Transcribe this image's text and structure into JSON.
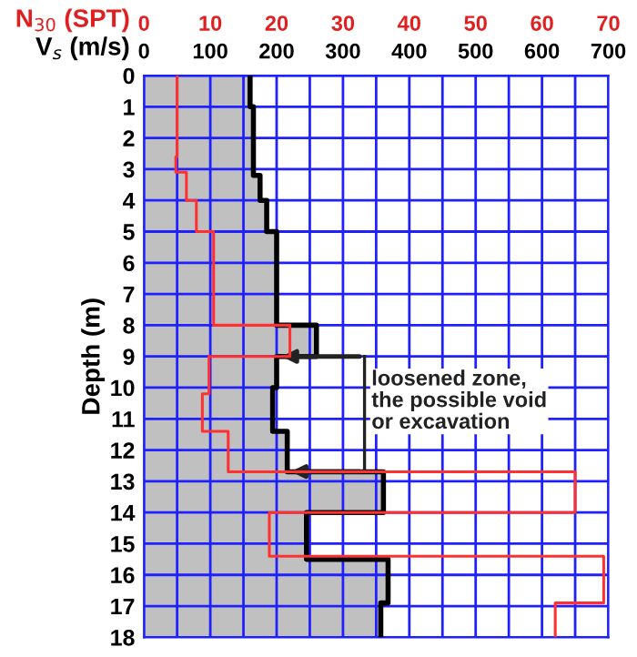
{
  "chart_data": {
    "type": "step",
    "orientation": "horizontal",
    "xlabel": "V$_{s}$ (m/s)",
    "x2label": "N$_{30}$ (SPT)",
    "ylabel": "Depth (m)",
    "xlim": [
      0,
      700
    ],
    "xticks": [
      0,
      {
        "value": 50,
        "label": null
      },
      100,
      {
        "value": 150,
        "label": null
      },
      200,
      {
        "value": 250,
        "label": null
      },
      300,
      {
        "value": 350,
        "label": null
      },
      400,
      {
        "value": 450,
        "label": null
      },
      500,
      {
        "value": 550,
        "label": null
      },
      600,
      {
        "value": 650,
        "label": null
      },
      700
    ],
    "x2lim": [
      0,
      70
    ],
    "x2ticks": [
      0,
      10,
      20,
      30,
      40,
      50,
      60,
      70
    ],
    "ylim": [
      18,
      0
    ],
    "yticks": [
      0,
      1,
      2,
      3,
      4,
      5,
      6,
      7,
      8,
      9,
      10,
      11,
      12,
      13,
      14,
      15,
      16,
      17,
      18
    ],
    "grid": true,
    "series": [
      {
        "type": "area",
        "color": "#c0c0c0",
        "x": [
          0,
          1,
          2.9,
          3.2,
          4,
          5,
          8,
          9,
          10,
          11.4,
          12.7,
          14,
          15.5,
          16.9,
          18
        ],
        "values": [
          160,
          165,
          165,
          175,
          185,
          200,
          260,
          200,
          194,
          216,
          361,
          245,
          368,
          357,
          357
        ]
      },
      {
        "color": "#000000",
        "x": [
          0,
          1,
          2.9,
          3.2,
          4,
          5,
          8,
          9,
          10,
          11.4,
          12.7,
          14,
          15.5,
          16.9,
          18
        ],
        "values": [
          160,
          165,
          165,
          175,
          185,
          200,
          260,
          200,
          194,
          216,
          361,
          245,
          368,
          357,
          357
        ]
      },
      {
        "axis": "x2",
        "color": "#ff3030",
        "x": [
          0,
          2.6,
          3.1,
          4,
          5,
          8,
          9,
          10.2,
          11.4,
          12.7,
          14,
          15.4,
          16.9,
          18
        ],
        "values": [
          5,
          4.8,
          6.4,
          7.9,
          10.5,
          22,
          9.8,
          8.8,
          12.7,
          65,
          18.9,
          69.3,
          62,
          62
        ]
      }
    ],
    "annotations": [
      {
        "text": "loosened zone,\nthe possible void\nor excavation",
        "x": 200,
        "y": 9
      }
    ]
  }
}
